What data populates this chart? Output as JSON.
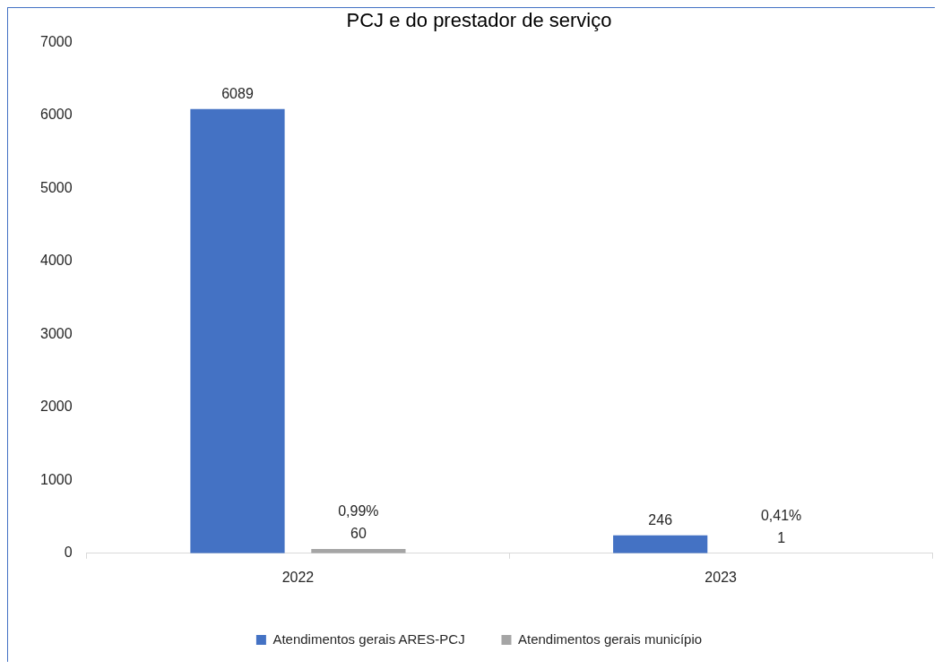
{
  "chart_data": {
    "type": "bar",
    "title": "PCJ e do prestador de serviço",
    "categories": [
      "2022",
      "2023"
    ],
    "series": [
      {
        "name": "Atendimentos gerais ARES-PCJ",
        "color": "#4472c4",
        "values": [
          6089,
          246
        ],
        "value_labels": [
          "6089",
          "246"
        ]
      },
      {
        "name": "Atendimentos gerais município",
        "color": "#a5a5a5",
        "values": [
          60,
          1
        ],
        "value_labels": [
          "0,99%\n60",
          "0,41%\n1"
        ]
      }
    ],
    "ylim": [
      0,
      7000
    ],
    "yticks": [
      0,
      1000,
      2000,
      3000,
      4000,
      5000,
      6000,
      7000
    ],
    "grid": false,
    "legend": "bottom"
  }
}
